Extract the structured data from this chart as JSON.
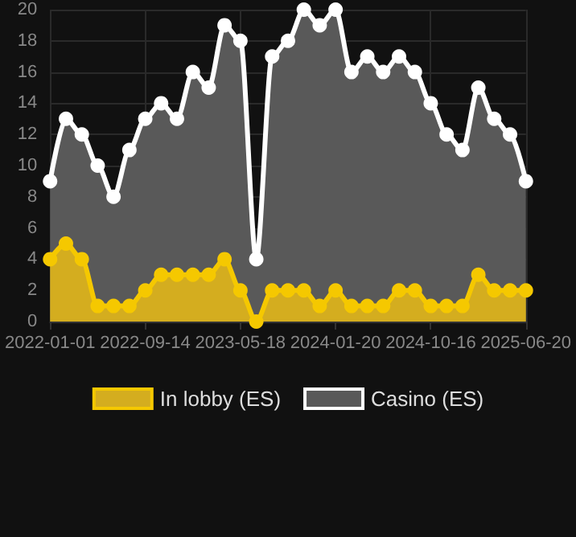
{
  "chart_data": {
    "type": "area",
    "categories": [
      "2022-01-01",
      null,
      null,
      null,
      null,
      null,
      "2022-09-14",
      null,
      null,
      null,
      null,
      null,
      "2023-05-18",
      null,
      null,
      null,
      null,
      null,
      "2024-01-20",
      null,
      null,
      null,
      null,
      null,
      "2024-10-16",
      null,
      null,
      null,
      null,
      null,
      "2025-06-20"
    ],
    "series": [
      {
        "name": "In lobby (ES)",
        "color": "#f5c800",
        "values": [
          4,
          5,
          4,
          1,
          1,
          1,
          2,
          3,
          3,
          3,
          3,
          4,
          2,
          0,
          2,
          2,
          2,
          1,
          2,
          1,
          1,
          1,
          2,
          2,
          1,
          1,
          1,
          3,
          2,
          2,
          2
        ]
      },
      {
        "name": "Casino (ES)",
        "color": "#ffffff",
        "values": [
          9,
          13,
          12,
          10,
          8,
          11,
          13,
          14,
          13,
          16,
          15,
          19,
          18,
          4,
          17,
          18,
          20,
          19,
          20,
          16,
          17,
          16,
          17,
          16,
          14,
          12,
          11,
          15,
          13,
          12,
          9
        ]
      }
    ],
    "ylim": [
      0,
      20
    ],
    "yticks": [
      0,
      2,
      4,
      6,
      8,
      10,
      12,
      14,
      16,
      18,
      20
    ],
    "grid": true,
    "legend": "bottom",
    "marker": "circle",
    "line_style": "solid"
  }
}
